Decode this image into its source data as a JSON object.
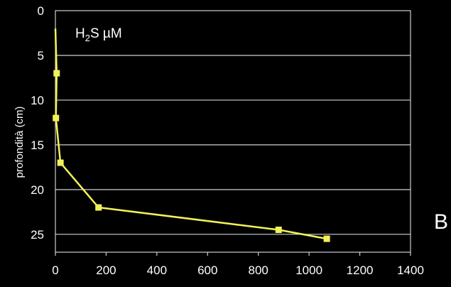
{
  "chart_data": {
    "type": "line",
    "title_main": "H",
    "title_sub": "2",
    "title_rest": "S  µM",
    "ylabel": "profondità (cm)",
    "xlabel": "",
    "xlim": [
      0,
      1400
    ],
    "ylim": [
      0,
      27
    ],
    "y_inverted": true,
    "xticks": [
      0,
      200,
      400,
      600,
      800,
      1000,
      1200,
      1400
    ],
    "yticks": [
      0,
      5,
      10,
      15,
      20,
      25
    ],
    "grid": "horizontal",
    "series": [
      {
        "color": "#f2f25a",
        "points": [
          {
            "x": 0,
            "y": 2,
            "marker": false
          },
          {
            "x": 5,
            "y": 7,
            "marker": true
          },
          {
            "x": 2,
            "y": 12,
            "marker": true
          },
          {
            "x": 20,
            "y": 17,
            "marker": true
          },
          {
            "x": 170,
            "y": 22,
            "marker": true
          },
          {
            "x": 880,
            "y": 24.5,
            "marker": true
          },
          {
            "x": 1070,
            "y": 25.5,
            "marker": true
          }
        ]
      }
    ]
  },
  "panel_label": "B"
}
